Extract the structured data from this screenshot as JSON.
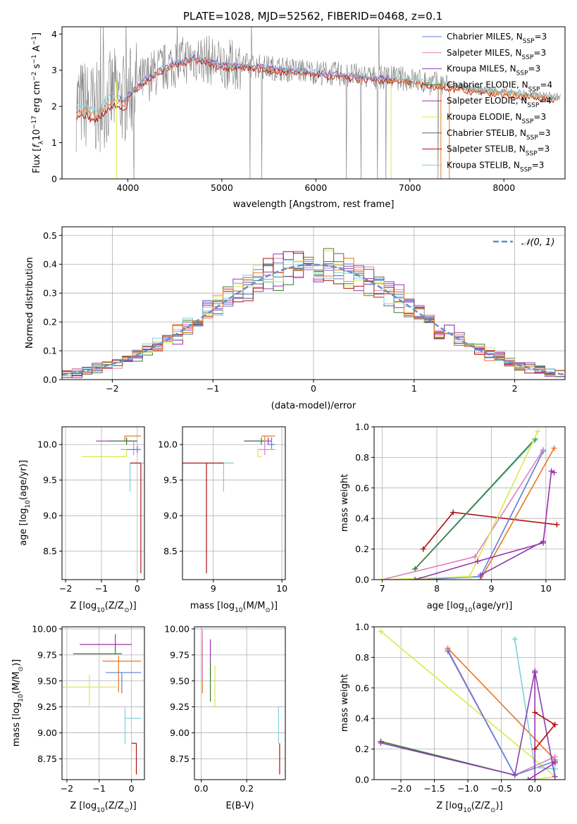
{
  "figure_title": "PLATE=1028, MJD=52562, FIBERID=0468, z=0.1",
  "colors": {
    "chabrier_miles": "#5b7fd6",
    "salpeter_miles": "#e07fbf",
    "kroupa_miles": "#8c3fb0",
    "chabrier_elodie": "#3a7a3a",
    "salpeter_elodie": "#9b30b0",
    "kroupa_elodie": "#d6ec4c",
    "chabrier_stelib": "#666666",
    "salpeter_stelib": "#b01010",
    "kroupa_stelib": "#7fd0d6",
    "orange": "#e87722",
    "gaussian": "#5b8fd6"
  },
  "chart_data": [
    {
      "id": "spectrum",
      "type": "line",
      "title": "PLATE=1028, MJD=52562, FIBERID=0468, z=0.1",
      "xlabel": "wavelength [Angstrom, rest frame]",
      "ylabel_parts": [
        "Flux [",
        "f",
        "λ",
        "10",
        "−17",
        " erg cm",
        "−2",
        " s",
        "−1",
        " A",
        "−1",
        "]"
      ],
      "xlim": [
        3300,
        8650
      ],
      "ylim": [
        0,
        4.2
      ],
      "xticks": [
        4000,
        5000,
        6000,
        7000,
        8000
      ],
      "yticks": [
        0,
        1,
        2,
        3,
        4
      ],
      "legend": [
        {
          "prefix": "Chabrier MILES, N",
          "sub": "SSP",
          "suffix": "=3",
          "color": "#5b7fd6"
        },
        {
          "prefix": "Salpeter MILES, N",
          "sub": "SSP",
          "suffix": "=3",
          "color": "#e07fbf"
        },
        {
          "prefix": "Kroupa MILES, N",
          "sub": "SSP",
          "suffix": "=3",
          "color": "#8c3fb0"
        },
        {
          "prefix": "Chabrier ELODIE, N",
          "sub": "SSP",
          "suffix": "=4",
          "color": "#3a7a3a"
        },
        {
          "prefix": "Salpeter ELODIE, N",
          "sub": "SSP",
          "suffix": "=4",
          "color": "#9b30b0"
        },
        {
          "prefix": "Kroupa ELODIE, N",
          "sub": "SSP",
          "suffix": "=3",
          "color": "#d6ec4c"
        },
        {
          "prefix": "Chabrier STELIB, N",
          "sub": "SSP",
          "suffix": "=3",
          "color": "#666666"
        },
        {
          "prefix": "Salpeter STELIB, N",
          "sub": "SSP",
          "suffix": "=3",
          "color": "#b01010"
        },
        {
          "prefix": "Kroupa STELIB, N",
          "sub": "SSP",
          "suffix": "=3",
          "color": "#7fd0d6"
        }
      ],
      "continuum_x": [
        3450,
        3550,
        3650,
        3750,
        3850,
        3950,
        4050,
        4150,
        4300,
        4500,
        4700,
        4850,
        5000,
        5200,
        5400,
        5600,
        5800,
        6000,
        6200,
        6400,
        6600,
        6800,
        7000,
        7200,
        7400,
        7600,
        7800,
        8000,
        8200,
        8400,
        8600
      ],
      "continuum_y": [
        2.2,
        2.2,
        2.05,
        2.25,
        2.5,
        2.35,
        2.6,
        2.85,
        3.1,
        3.35,
        3.5,
        3.45,
        3.3,
        3.3,
        3.25,
        3.2,
        3.15,
        3.1,
        3.05,
        3.0,
        2.95,
        2.95,
        2.9,
        2.8,
        2.75,
        2.65,
        2.6,
        2.55,
        2.5,
        2.45,
        2.4
      ],
      "data_noise": "grey spectrum noisy around continuum"
    },
    {
      "id": "residuals",
      "type": "histogram",
      "xlabel": "(data-model)/error",
      "ylabel": "Normed distribution",
      "xlim": [
        -2.5,
        2.5
      ],
      "ylim": [
        0,
        0.53
      ],
      "xticks": [
        -2,
        -1,
        0,
        1,
        2
      ],
      "yticks": [
        0.0,
        0.1,
        0.2,
        0.3,
        0.4,
        0.5
      ],
      "legend": "𝒩(0, 1)",
      "bin_width": 0.1
    },
    {
      "id": "age_vs_Z",
      "type": "errorbar",
      "xlabel_parts": [
        "Z [log",
        "10",
        "(Z/Z",
        "⊙",
        ")]"
      ],
      "ylabel_parts": [
        "age  [log",
        "10",
        "(age/yr)]"
      ],
      "xlim": [
        -2.1,
        0.2
      ],
      "ylim": [
        8.1,
        10.25
      ],
      "xticks": [
        -2,
        -1,
        0
      ],
      "yticks": [
        8.5,
        9.0,
        9.5,
        10.0
      ],
      "points": [
        {
          "x": -0.35,
          "y": 10.12,
          "xerr": [
            0.0,
            0.45
          ],
          "yerr": [
            0.06,
            0.0
          ],
          "color": "#e87722"
        },
        {
          "x": -0.3,
          "y": 10.05,
          "xerr": [
            0.85,
            0.3
          ],
          "yerr": [
            0.05,
            0.05
          ],
          "color": "#9b30b0"
        },
        {
          "x": -0.3,
          "y": 10.05,
          "xerr": [
            0.5,
            0.3
          ],
          "yerr": [
            0.05,
            0.05
          ],
          "color": "#3a7a3a"
        },
        {
          "x": -0.1,
          "y": 9.93,
          "xerr": [
            0.35,
            0.2
          ],
          "yerr": [
            0.08,
            0.12
          ],
          "color": "#e07fbf"
        },
        {
          "x": 0.0,
          "y": 9.93,
          "xerr": [
            0.3,
            0.1
          ],
          "yerr": [
            0.05,
            0.05
          ],
          "color": "#5b7fd6"
        },
        {
          "x": -0.3,
          "y": 9.83,
          "xerr": [
            1.25,
            0.0
          ],
          "yerr": [
            0.0,
            0.1
          ],
          "color": "#d6ec4c"
        },
        {
          "x": -0.2,
          "y": 9.74,
          "xerr": [
            0.0,
            0.5
          ],
          "yerr": [
            0.4,
            0.0
          ],
          "color": "#7fd0d6"
        },
        {
          "x": 0.1,
          "y": 9.74,
          "xerr": [
            0.3,
            0.0
          ],
          "yerr": [
            1.55,
            0.0
          ],
          "color": "#b01010"
        }
      ]
    },
    {
      "id": "age_vs_mass",
      "type": "errorbar",
      "xlabel_parts": [
        "mass [log",
        "10",
        "(M/M",
        "⊙",
        ")]"
      ],
      "xlim": [
        8.55,
        10.05
      ],
      "ylim": [
        8.1,
        10.25
      ],
      "xticks": [
        9,
        10
      ],
      "yticks": [
        8.5,
        9.0,
        9.5,
        10.0
      ],
      "points": [
        {
          "x": 9.75,
          "y": 10.12,
          "xerr": [
            0.05,
            0.15
          ],
          "yerr": [
            0.06,
            0.0
          ],
          "color": "#e87722"
        },
        {
          "x": 9.8,
          "y": 10.05,
          "xerr": [
            0.35,
            0.05
          ],
          "yerr": [
            0.05,
            0.05
          ],
          "color": "#9b30b0"
        },
        {
          "x": 9.7,
          "y": 10.05,
          "xerr": [
            0.25,
            0.05
          ],
          "yerr": [
            0.05,
            0.05
          ],
          "color": "#3a7a3a"
        },
        {
          "x": 9.75,
          "y": 9.93,
          "xerr": [
            0.1,
            0.15
          ],
          "yerr": [
            0.08,
            0.12
          ],
          "color": "#e07fbf"
        },
        {
          "x": 9.85,
          "y": 10.0,
          "xerr": [
            0.05,
            0.05
          ],
          "yerr": [
            0.06,
            0.1
          ],
          "color": "#5b7fd6"
        },
        {
          "x": 9.65,
          "y": 9.83,
          "xerr": [
            0.0,
            0.05
          ],
          "yerr": [
            0.0,
            0.1
          ],
          "color": "#d6ec4c"
        },
        {
          "x": 9.15,
          "y": 9.74,
          "xerr": [
            0.1,
            0.15
          ],
          "yerr": [
            0.4,
            0.0
          ],
          "color": "#7fd0d6"
        },
        {
          "x": 8.9,
          "y": 9.74,
          "xerr": [
            0.35,
            0.25
          ],
          "yerr": [
            1.55,
            0.0
          ],
          "color": "#b01010"
        }
      ]
    },
    {
      "id": "weight_vs_age",
      "type": "line",
      "xlabel_parts": [
        "age  [log",
        "10",
        "(age/yr)]"
      ],
      "ylabel": "mass weight",
      "xlim": [
        6.85,
        10.35
      ],
      "ylim": [
        0,
        1.0
      ],
      "xticks": [
        7,
        8,
        9,
        10
      ],
      "yticks": [
        0.0,
        0.2,
        0.4,
        0.6,
        0.8,
        1.0
      ],
      "series": [
        {
          "color": "#b01010",
          "x": [
            7.75,
            8.3,
            10.2
          ],
          "y": [
            0.2,
            0.44,
            0.36
          ]
        },
        {
          "color": "#7fd0d6",
          "x": [
            7.6,
            9.8
          ],
          "y": [
            0.07,
            0.91
          ]
        },
        {
          "color": "#3a7a3a",
          "x": [
            7.6,
            9.8
          ],
          "y": [
            0.07,
            0.92
          ]
        },
        {
          "color": "#5b7fd6",
          "x": [
            8.8,
            9.95
          ],
          "y": [
            0.02,
            0.84
          ]
        },
        {
          "color": "#5b7fd6",
          "x": [
            7.7,
            8.8
          ],
          "y": [
            0.0,
            0.02
          ]
        },
        {
          "color": "#e07fbf",
          "x": [
            7.0,
            8.7,
            9.95
          ],
          "y": [
            0.0,
            0.15,
            0.85
          ]
        },
        {
          "color": "#e87722",
          "x": [
            8.8,
            10.15
          ],
          "y": [
            0.0,
            0.86
          ]
        },
        {
          "color": "#d6ec4c",
          "x": [
            7.0,
            8.6,
            9.85
          ],
          "y": [
            0.0,
            0.02,
            0.97
          ]
        },
        {
          "color": "#9b30b0",
          "x": [
            7.6,
            8.75,
            9.95,
            10.1,
            10.15
          ],
          "y": [
            0.0,
            0.12,
            0.24,
            0.71,
            0.7
          ]
        },
        {
          "color": "#8c3fb0",
          "x": [
            8.8,
            9.95
          ],
          "y": [
            0.03,
            0.25
          ]
        }
      ]
    },
    {
      "id": "mass_vs_Z",
      "type": "errorbar",
      "xlabel_parts": [
        "Z [log",
        "10",
        "(Z/Z",
        "⊙",
        ")]"
      ],
      "ylabel_parts": [
        "mass [log",
        "10",
        "(M/M",
        "⊙",
        ")]"
      ],
      "xlim": [
        -2.15,
        0.4
      ],
      "ylim": [
        8.55,
        10.02
      ],
      "xticks": [
        -2,
        -1,
        0
      ],
      "yticks": [
        8.75,
        9.0,
        9.25,
        9.5,
        9.75,
        10.0
      ],
      "points": [
        {
          "x": -0.5,
          "y": 9.85,
          "xerr": [
            1.1,
            0.5
          ],
          "yerr": [
            0.05,
            0.1
          ],
          "color": "#9b30b0"
        },
        {
          "x": -0.5,
          "y": 9.76,
          "xerr": [
            1.3,
            0.2
          ],
          "yerr": [
            0.0,
            0.05
          ],
          "color": "#3a7a3a"
        },
        {
          "x": -0.4,
          "y": 9.69,
          "xerr": [
            0.5,
            0.7
          ],
          "yerr": [
            0.3,
            0.05
          ],
          "color": "#e87722"
        },
        {
          "x": -0.3,
          "y": 9.58,
          "xerr": [
            0.5,
            0.6
          ],
          "yerr": [
            0.2,
            0.0
          ],
          "color": "#5b7fd6"
        },
        {
          "x": -1.3,
          "y": 9.44,
          "xerr": [
            0.85,
            0.85
          ],
          "yerr": [
            0.18,
            0.12
          ],
          "color": "#d6ec4c"
        },
        {
          "x": -0.2,
          "y": 9.14,
          "xerr": [
            0.0,
            0.5
          ],
          "yerr": [
            0.25,
            0.1
          ],
          "color": "#7fd0d6"
        },
        {
          "x": 0.15,
          "y": 8.9,
          "xerr": [
            0.15,
            0.0
          ],
          "yerr": [
            0.3,
            0.0
          ],
          "color": "#b01010"
        }
      ]
    },
    {
      "id": "mass_vs_ebv",
      "type": "errorbar",
      "xlabel": "E(B-V)",
      "xlim": [
        -0.03,
        0.37
      ],
      "ylim": [
        8.55,
        10.02
      ],
      "xticks": [
        0.0,
        0.2
      ],
      "yticks": [
        8.75,
        9.0,
        9.25,
        9.5,
        9.75,
        10.0
      ],
      "points": [
        {
          "x": 0.04,
          "y": 9.75,
          "yerr": [
            0.2,
            0.15
          ],
          "color": "#9b30b0"
        },
        {
          "x": 0.04,
          "y": 9.68,
          "yerr": [
            0.38,
            0.0
          ],
          "color": "#3a7a3a"
        },
        {
          "x": 0.005,
          "y": 9.68,
          "yerr": [
            0.3,
            0.2
          ],
          "color": "#e87722"
        },
        {
          "x": 0.005,
          "y": 9.8,
          "yerr": [
            0.3,
            0.2
          ],
          "color": "#e07fbf"
        },
        {
          "x": 0.06,
          "y": 9.5,
          "yerr": [
            0.25,
            0.15
          ],
          "color": "#d6ec4c"
        },
        {
          "x": 0.34,
          "y": 9.1,
          "yerr": [
            0.2,
            0.15
          ],
          "color": "#7fd0d6"
        },
        {
          "x": 0.345,
          "y": 8.9,
          "yerr": [
            0.3,
            0.0
          ],
          "color": "#b01010"
        }
      ]
    },
    {
      "id": "weight_vs_Z",
      "type": "line",
      "xlabel_parts": [
        "Z [log",
        "10",
        "(Z/Z",
        "⊙",
        ")]"
      ],
      "ylabel": "mass weight",
      "xlim": [
        -2.4,
        0.45
      ],
      "ylim": [
        0,
        1.0
      ],
      "xticks": [
        -2.0,
        -1.5,
        -1.0,
        -0.5,
        0.0
      ],
      "yticks": [
        0.0,
        0.2,
        0.4,
        0.6,
        0.8,
        1.0
      ],
      "series": [
        {
          "color": "#d6ec4c",
          "x": [
            -2.3,
            0.3,
            0.0
          ],
          "y": [
            0.97,
            0.02,
            0.0
          ]
        },
        {
          "color": "#e87722",
          "x": [
            -1.3,
            0.3
          ],
          "y": [
            0.86,
            0.13
          ]
        },
        {
          "color": "#e07fbf",
          "x": [
            -1.3,
            -0.3,
            0.3
          ],
          "y": [
            0.85,
            0.03,
            0.15
          ]
        },
        {
          "color": "#5b7fd6",
          "x": [
            -1.3,
            -0.3,
            0.3
          ],
          "y": [
            0.84,
            0.03,
            0.12
          ]
        },
        {
          "color": "#7fd0d6",
          "x": [
            -0.3,
            0.0,
            0.3
          ],
          "y": [
            0.92,
            0.08,
            0.07
          ]
        },
        {
          "color": "#3a7a3a",
          "x": [
            -2.3,
            -0.3
          ],
          "y": [
            0.25,
            0.03
          ]
        },
        {
          "color": "#8c3fb0",
          "x": [
            -2.3,
            -0.3,
            0.0,
            0.3
          ],
          "y": [
            0.24,
            0.03,
            0.71,
            0.02
          ]
        },
        {
          "color": "#9b30b0",
          "x": [
            0.0,
            0.0,
            -0.1,
            0.3
          ],
          "y": [
            0.7,
            0.0,
            0.0,
            0.11
          ]
        },
        {
          "color": "#b01010",
          "x": [
            0.0,
            0.3,
            0.0,
            0.0
          ],
          "y": [
            0.44,
            0.36,
            0.2,
            0.2
          ]
        }
      ]
    }
  ]
}
